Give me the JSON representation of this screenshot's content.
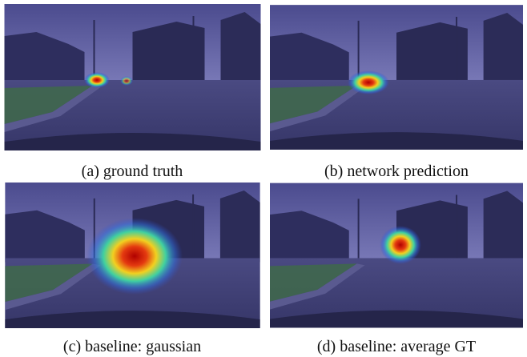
{
  "figure": {
    "panels": [
      {
        "caption": "(a) ground truth"
      },
      {
        "caption": "(b) network prediction"
      },
      {
        "caption": "(c) baseline: gaussian"
      },
      {
        "caption": "(d) baseline: average GT"
      }
    ]
  }
}
